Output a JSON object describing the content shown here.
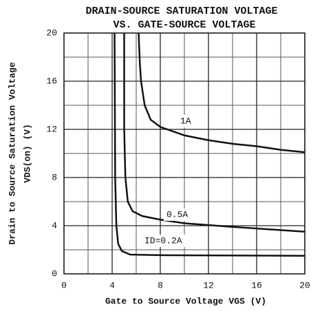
{
  "chart_data": {
    "type": "line",
    "title": "DRAIN-SOURCE SATURATION VOLTAGE",
    "subtitle": "VS. GATE-SOURCE VOLTAGE",
    "xlabel": "Gate to Source Voltage VGS (V)",
    "ylabel": "Drain to Source Saturation Voltage",
    "ylabel2": "VDS(on)  (V)",
    "xlim": [
      0,
      20
    ],
    "xticks": [
      0,
      4,
      8,
      12,
      16,
      20
    ],
    "ylim": [
      0,
      20
    ],
    "yticks": [
      0,
      4,
      8,
      12,
      16,
      20
    ],
    "grid": true,
    "series": [
      {
        "name": "1A",
        "color": "#111111",
        "x": [
          6.2,
          6.3,
          6.4,
          6.7,
          7.2,
          8,
          10,
          12,
          14,
          16,
          18,
          20
        ],
        "values": [
          20,
          17.5,
          16,
          14,
          12.8,
          12.2,
          11.5,
          11.1,
          10.8,
          10.6,
          10.3,
          10.1
        ]
      },
      {
        "name": "0.5A",
        "color": "#111111",
        "x": [
          5.0,
          5.0,
          5.1,
          5.3,
          5.7,
          6.5,
          8,
          10,
          14,
          20
        ],
        "values": [
          20,
          12,
          8,
          6,
          5.2,
          4.8,
          4.5,
          4.2,
          3.9,
          3.5
        ]
      },
      {
        "name": "ID=0.2A",
        "color": "#111111",
        "x": [
          4.2,
          4.25,
          4.35,
          4.5,
          4.8,
          5.5,
          8,
          20
        ],
        "values": [
          20,
          8,
          4,
          2.5,
          1.9,
          1.6,
          1.55,
          1.5
        ]
      }
    ]
  }
}
